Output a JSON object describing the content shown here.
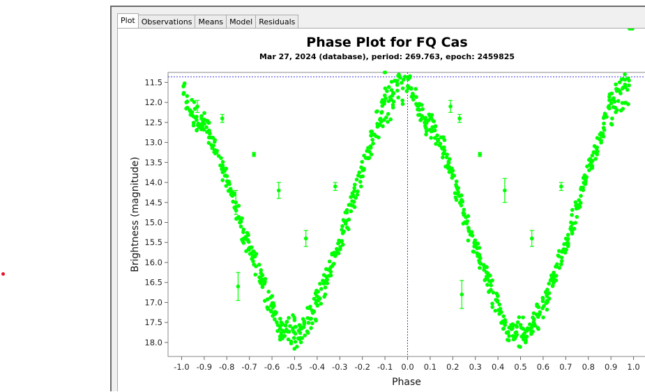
{
  "tabs": [
    {
      "label": "Plot",
      "active": true
    },
    {
      "label": "Observations",
      "active": false
    },
    {
      "label": "Means",
      "active": false
    },
    {
      "label": "Model",
      "active": false
    },
    {
      "label": "Residuals",
      "active": false
    }
  ],
  "colors": {
    "points": "#00ff00",
    "crosshair": "#3a3adf",
    "marker": "#e8102a"
  },
  "chart_data": {
    "type": "scatter",
    "title": "Phase Plot for FQ Cas",
    "subtitle": "Mar 27, 2024 (database), period: 269.763, epoch: 2459825",
    "xlabel": "Phase",
    "ylabel": "Brightness (magnitude)",
    "xlim": [
      -1.06,
      1.06
    ],
    "ylim": [
      11.25,
      18.35
    ],
    "y_inverted": true,
    "x_ticks": [
      -1.0,
      -0.9,
      -0.8,
      -0.7,
      -0.6,
      -0.5,
      -0.4,
      -0.3,
      -0.2,
      -0.1,
      0.0,
      0.1,
      0.2,
      0.3,
      0.4,
      0.5,
      0.6,
      0.7,
      0.8,
      0.9,
      1.0
    ],
    "x_tick_labels": [
      "-1.0",
      "-0.9",
      "-0.8",
      "-0.7",
      "-0.6",
      "-0.5",
      "-0.4",
      "-0.3",
      "-0.2",
      "-0.1",
      "0.0",
      "0.1",
      "0.2",
      "0.3",
      "0.4",
      "0.5",
      "0.6",
      "0.7",
      "0.8",
      "0.9",
      "1.0"
    ],
    "y_ticks": [
      11.5,
      12.0,
      12.5,
      13.0,
      13.5,
      14.0,
      14.5,
      15.0,
      15.5,
      16.0,
      16.5,
      17.0,
      17.5,
      18.0
    ],
    "y_tick_labels": [
      "11.5",
      "12.0",
      "12.5",
      "13.0",
      "13.5",
      "14.0",
      "14.5",
      "15.0",
      "15.5",
      "16.0",
      "16.5",
      "17.0",
      "17.5",
      "18.0"
    ],
    "crosshair": {
      "x": 0.0,
      "y": 11.36
    },
    "grid": false,
    "series": [
      {
        "phase": [
          -0.995,
          -0.98,
          -0.97,
          -0.955,
          -0.94,
          -0.925,
          -0.91,
          -0.895,
          -0.88,
          -0.865,
          -0.85,
          -0.835,
          -0.82,
          -0.805,
          -0.79,
          -0.775,
          -0.76,
          -0.745,
          -0.73,
          -0.715,
          -0.7,
          -0.685,
          -0.67,
          -0.655,
          -0.64,
          -0.625,
          -0.61,
          -0.595,
          -0.58,
          -0.565,
          -0.55,
          -0.535,
          -0.52,
          -0.505,
          -0.49,
          -0.475,
          -0.46,
          -0.445,
          -0.43,
          -0.415,
          -0.4,
          -0.385,
          -0.37,
          -0.355,
          -0.34,
          -0.325,
          -0.31,
          -0.295,
          -0.28,
          -0.265,
          -0.25,
          -0.235,
          -0.22,
          -0.205,
          -0.19,
          -0.175,
          -0.16,
          -0.145,
          -0.13,
          -0.115,
          -0.1,
          -0.085,
          -0.07,
          -0.055,
          -0.04,
          -0.025,
          -0.01,
          0.005,
          0.02,
          0.035,
          0.05,
          0.065,
          0.08,
          0.095,
          0.11,
          0.125,
          0.14,
          0.155,
          0.17,
          0.185,
          0.2,
          0.215,
          0.23,
          0.245,
          0.26,
          0.275,
          0.29,
          0.305,
          0.32,
          0.335,
          0.35,
          0.365,
          0.38,
          0.395,
          0.41,
          0.425,
          0.44,
          0.455,
          0.47,
          0.485,
          0.5,
          0.515,
          0.53,
          0.545,
          0.56,
          0.575,
          0.59,
          0.605,
          0.62,
          0.635,
          0.65,
          0.665,
          0.68,
          0.695,
          0.71,
          0.725,
          0.74,
          0.755,
          0.77,
          0.785,
          0.8,
          0.815,
          0.83,
          0.845,
          0.86,
          0.875,
          0.89,
          0.905,
          0.92,
          0.935,
          0.95,
          0.965,
          0.98,
          0.995
        ],
        "magnitude": [
          11.5,
          11.9,
          12.3,
          12.4,
          12.5,
          12.6,
          12.3,
          12.5,
          12.7,
          12.9,
          13.1,
          13.4,
          13.6,
          13.9,
          14.2,
          14.4,
          14.7,
          15.0,
          15.3,
          15.5,
          15.7,
          15.9,
          16.1,
          16.4,
          16.6,
          16.9,
          17.1,
          17.3,
          17.5,
          17.7,
          17.8,
          17.7,
          17.6,
          17.5,
          17.7,
          17.8,
          17.6,
          17.4,
          17.2,
          17.1,
          16.9,
          16.7,
          16.5,
          16.3,
          16.1,
          15.8,
          15.6,
          15.4,
          15.1,
          14.8,
          14.5,
          14.2,
          14.0,
          13.7,
          13.5,
          13.2,
          12.9,
          12.7,
          12.4,
          12.1,
          11.9,
          11.8,
          11.7,
          11.6,
          11.5,
          11.4,
          11.5,
          11.5,
          11.7,
          11.9,
          12.2,
          12.4,
          12.6,
          12.4,
          12.5,
          12.7,
          12.9,
          13.1,
          13.4,
          13.6,
          13.9,
          14.2,
          14.4,
          14.7,
          15.0,
          15.3,
          15.5,
          15.7,
          15.9,
          16.1,
          16.4,
          16.6,
          16.9,
          17.1,
          17.3,
          17.5,
          17.7,
          17.8,
          17.7,
          17.6,
          17.5,
          17.7,
          17.8,
          17.6,
          17.4,
          17.2,
          17.1,
          16.9,
          16.7,
          16.5,
          16.3,
          16.1,
          15.8,
          15.6,
          15.4,
          15.1,
          14.8,
          14.5,
          14.2,
          14.0,
          13.7,
          13.5,
          13.2,
          12.9,
          12.7,
          12.4,
          12.1,
          11.9,
          11.8,
          11.7,
          11.6,
          11.5,
          11.6
        ],
        "upper_branch": [
          12.0,
          12.2,
          12.6,
          12.8,
          13.0,
          13.2,
          13.6,
          14.0,
          14.4,
          14.8,
          15.2,
          15.6,
          15.9,
          16.3,
          16.6,
          17.0,
          17.4,
          17.7,
          17.9,
          18.0,
          17.9,
          17.8,
          17.6,
          17.3,
          17.0,
          16.6,
          16.2,
          15.8,
          15.4,
          15.0,
          14.5,
          14.1,
          13.6,
          13.2,
          12.9,
          12.6,
          12.4,
          12.2,
          12.0,
          11.9
        ]
      }
    ]
  }
}
